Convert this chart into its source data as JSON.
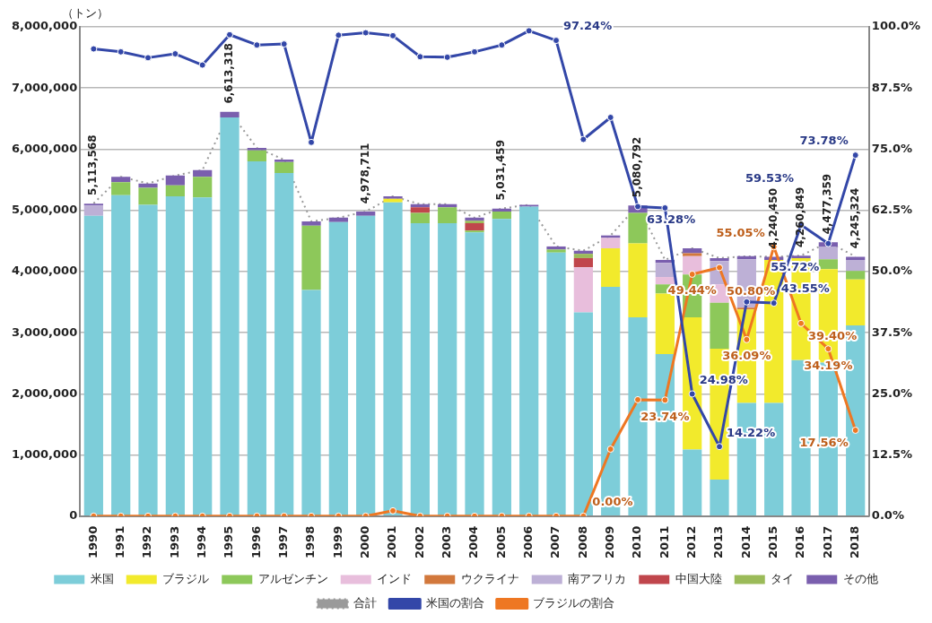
{
  "chart_data": {
    "type": "bar",
    "stacked": true,
    "ylabel": "（トン）",
    "legend": "bottom",
    "grid": "y",
    "categories": [
      "1990",
      "1991",
      "1992",
      "1993",
      "1994",
      "1995",
      "1996",
      "1997",
      "1998",
      "1999",
      "2000",
      "2001",
      "2002",
      "2003",
      "2004",
      "2005",
      "2006",
      "2007",
      "2008",
      "2009",
      "2010",
      "2011",
      "2012",
      "2013",
      "2014",
      "2015",
      "2016",
      "2017",
      "2018"
    ],
    "ylim": [
      0,
      8000000
    ],
    "yticks": [
      {
        "value": 0,
        "label": "0"
      },
      {
        "value": 1000000,
        "label": "1,000,000"
      },
      {
        "value": 2000000,
        "label": "2,000,000"
      },
      {
        "value": 3000000,
        "label": "3,000,000"
      },
      {
        "value": 4000000,
        "label": "4,000,000"
      },
      {
        "value": 5000000,
        "label": "5,000,000"
      },
      {
        "value": 6000000,
        "label": "6,000,000"
      },
      {
        "value": 7000000,
        "label": "7,000,000"
      },
      {
        "value": 8000000,
        "label": "8,000,000"
      }
    ],
    "y2lim": [
      0,
      100
    ],
    "y2ticks": [
      {
        "value": 0,
        "label": "0.0%"
      },
      {
        "value": 12.5,
        "label": "12.5%"
      },
      {
        "value": 25,
        "label": "25.0%"
      },
      {
        "value": 37.5,
        "label": "37.5%"
      },
      {
        "value": 50,
        "label": "50.0%"
      },
      {
        "value": 62.5,
        "label": "62.5%"
      },
      {
        "value": 75,
        "label": "75.0%"
      },
      {
        "value": 87.5,
        "label": "87.5%"
      },
      {
        "value": 100,
        "label": "100.0%"
      }
    ],
    "series": [
      {
        "name": "米国",
        "color": "#7dcdd9",
        "values": [
          4910000,
          5250000,
          5090000,
          5230000,
          5210000,
          6520000,
          5800000,
          5610000,
          3700000,
          4810000,
          4910000,
          5130000,
          4790000,
          4790000,
          4640000,
          4860000,
          5060000,
          4310000,
          3330000,
          3750000,
          3250000,
          2650000,
          1090000,
          600000,
          1850000,
          1850000,
          2550000,
          2510000,
          3120000
        ]
      },
      {
        "name": "ブラジル",
        "color": "#f2ea2c",
        "values": [
          0,
          0,
          0,
          0,
          0,
          0,
          0,
          0,
          0,
          0,
          0,
          60000,
          0,
          0,
          0,
          0,
          0,
          0,
          0,
          630000,
          1210000,
          990000,
          2160000,
          2140000,
          1530000,
          2340000,
          1670000,
          1530000,
          750000
        ]
      },
      {
        "name": "アルゼンチン",
        "color": "#8dc85a",
        "values": [
          0,
          210000,
          280000,
          180000,
          340000,
          0,
          180000,
          180000,
          1050000,
          0,
          0,
          0,
          170000,
          260000,
          30000,
          120000,
          0,
          50000,
          0,
          0,
          500000,
          150000,
          700000,
          750000,
          0,
          0,
          0,
          160000,
          140000
        ]
      },
      {
        "name": "インド",
        "color": "#e8bedc",
        "values": [
          0,
          0,
          0,
          0,
          0,
          0,
          0,
          0,
          0,
          0,
          0,
          0,
          0,
          0,
          0,
          0,
          0,
          0,
          740000,
          170000,
          0,
          120000,
          300000,
          300000,
          0,
          0,
          0,
          0,
          0
        ]
      },
      {
        "name": "ウクライナ",
        "color": "#d2783c",
        "values": [
          0,
          0,
          0,
          0,
          0,
          0,
          0,
          0,
          0,
          0,
          0,
          0,
          0,
          0,
          0,
          0,
          0,
          0,
          0,
          0,
          0,
          0,
          50000,
          0,
          30000,
          0,
          0,
          0,
          0
        ]
      },
      {
        "name": "南アフリカ",
        "color": "#bdb0d6",
        "values": [
          170000,
          0,
          0,
          0,
          0,
          0,
          0,
          0,
          0,
          0,
          0,
          0,
          0,
          0,
          0,
          0,
          0,
          0,
          0,
          0,
          0,
          230000,
          0,
          380000,
          790000,
          0,
          0,
          200000,
          180000
        ]
      },
      {
        "name": "中国大陸",
        "color": "#c0464c",
        "values": [
          0,
          0,
          0,
          0,
          0,
          0,
          0,
          0,
          0,
          0,
          0,
          0,
          90000,
          0,
          120000,
          0,
          0,
          0,
          150000,
          0,
          0,
          0,
          0,
          0,
          0,
          0,
          0,
          0,
          0
        ]
      },
      {
        "name": "タイ",
        "color": "#9bbb59",
        "values": [
          0,
          0,
          0,
          0,
          0,
          0,
          0,
          0,
          0,
          0,
          0,
          0,
          0,
          0,
          40000,
          0,
          0,
          0,
          70000,
          0,
          0,
          0,
          0,
          0,
          0,
          0,
          0,
          0,
          0
        ]
      },
      {
        "name": "その他",
        "color": "#7a5fae",
        "values": [
          30000,
          90000,
          70000,
          160000,
          110000,
          90000,
          40000,
          40000,
          70000,
          70000,
          70000,
          40000,
          50000,
          50000,
          50000,
          50000,
          30000,
          50000,
          50000,
          40000,
          120000,
          50000,
          80000,
          50000,
          50000,
          50000,
          40000,
          80000,
          50000
        ]
      },
      {
        "name": "合計",
        "type": "line",
        "line_style": "dotted",
        "marker": "none",
        "color": "#9a9a9a",
        "values": [
          5113568,
          5550000,
          5440000,
          5570000,
          5660000,
          6613318,
          6020000,
          5830000,
          4820000,
          4880000,
          4978711,
          5230000,
          5100000,
          5100000,
          4880000,
          5031459,
          5090000,
          4410000,
          4340000,
          4590000,
          5080792,
          4190000,
          4380000,
          4220000,
          4250000,
          4240450,
          4260849,
          4477359,
          4245324
        ],
        "value_labels": [
          "5,113,568",
          null,
          null,
          null,
          null,
          "6,613,318",
          null,
          null,
          null,
          null,
          "4,978,711",
          null,
          null,
          null,
          null,
          "5,031,459",
          null,
          null,
          null,
          null,
          "5,080,792",
          null,
          null,
          null,
          null,
          "4,240,450",
          "4,260,849",
          "4,477,359",
          "4,245,324"
        ]
      },
      {
        "name": "米国の割合",
        "type": "line",
        "axis": "y2",
        "line_style": "solid",
        "marker": "circle",
        "color": "#3347a8",
        "values": [
          95.5,
          94.9,
          93.7,
          94.5,
          92.2,
          98.4,
          96.3,
          96.5,
          76.4,
          98.3,
          98.8,
          98.2,
          93.9,
          93.8,
          94.9,
          96.3,
          99.2,
          97.24,
          77.0,
          81.5,
          63.28,
          63.0,
          24.98,
          14.22,
          43.8,
          43.55,
          59.53,
          55.72,
          73.78
        ],
        "value_labels": [
          null,
          null,
          null,
          null,
          null,
          null,
          null,
          null,
          null,
          null,
          null,
          null,
          null,
          null,
          null,
          null,
          null,
          "97.24%",
          null,
          null,
          "63.28%",
          null,
          "24.98%",
          "14.22%",
          null,
          "43.55%",
          "59.53%",
          "55.72%",
          "73.78%"
        ]
      },
      {
        "name": "ブラジルの割合",
        "type": "line",
        "axis": "y2",
        "line_style": "solid",
        "marker": "circle",
        "color": "#ee7722",
        "values": [
          0,
          0,
          0,
          0,
          0,
          0,
          0,
          0,
          0,
          0,
          0,
          1.1,
          0,
          0,
          0,
          0,
          0,
          0,
          0,
          13.7,
          23.8,
          23.74,
          49.44,
          50.8,
          36.09,
          55.05,
          39.4,
          34.19,
          17.56
        ],
        "value_labels": [
          null,
          null,
          null,
          null,
          null,
          null,
          null,
          null,
          null,
          null,
          null,
          null,
          null,
          null,
          null,
          null,
          null,
          null,
          "0.00%",
          null,
          null,
          "23.74%",
          "49.44%",
          "50.80%",
          "36.09%",
          "55.05%",
          "39.40%",
          "34.19%",
          "17.56%"
        ]
      }
    ]
  }
}
